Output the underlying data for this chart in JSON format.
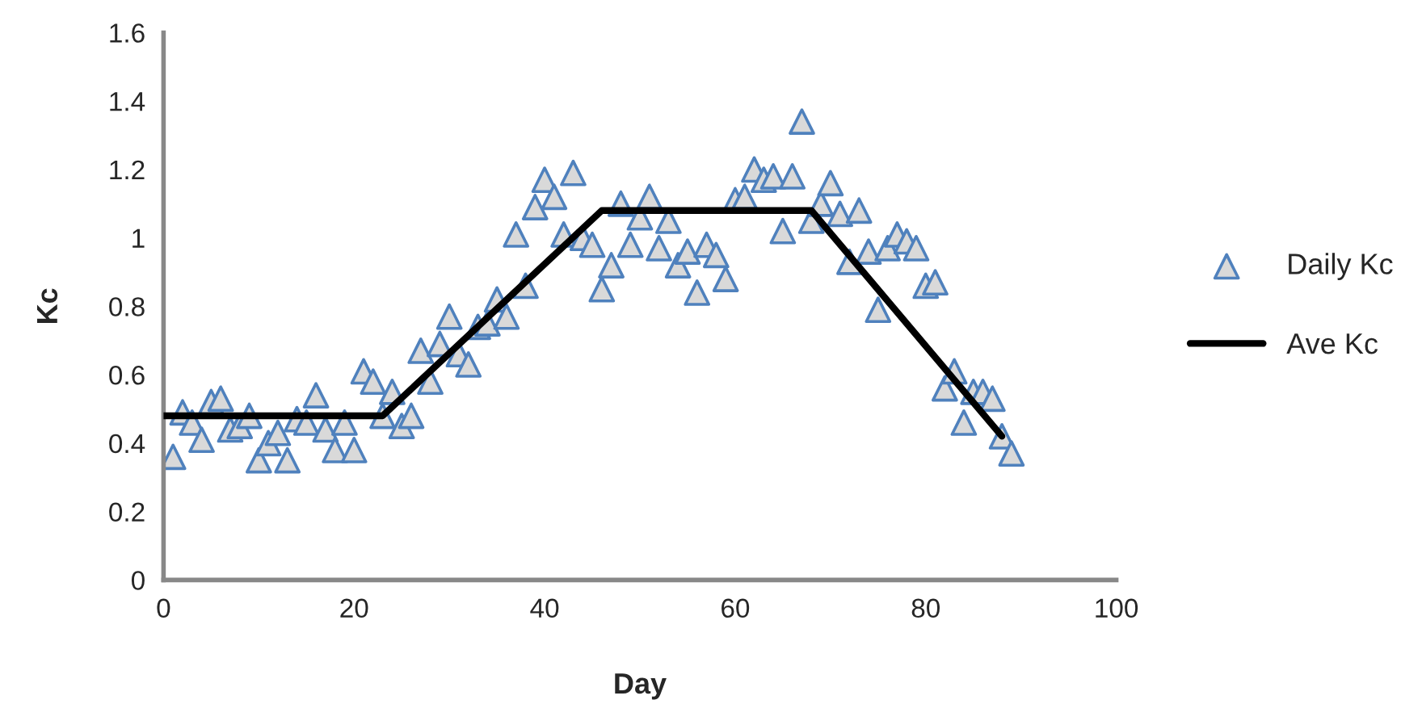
{
  "chart_data": {
    "type": "scatter",
    "xlabel": "Day",
    "ylabel": "Kc",
    "xlim": [
      0,
      100
    ],
    "xticks": [
      0,
      20,
      40,
      60,
      80,
      100
    ],
    "ylim": [
      0,
      1.6
    ],
    "yticks": [
      0,
      0.2,
      0.4,
      0.6,
      0.8,
      1,
      1.2,
      1.4,
      1.6
    ],
    "grid": false,
    "legend": "right",
    "series": [
      {
        "name": "Daily Kc",
        "marker": "triangle",
        "color": "#4f81bd",
        "x": [
          1,
          2,
          3,
          4,
          5,
          6,
          7,
          8,
          9,
          10,
          11,
          12,
          13,
          14,
          15,
          16,
          17,
          18,
          19,
          20,
          21,
          22,
          23,
          24,
          25,
          26,
          27,
          28,
          29,
          30,
          31,
          32,
          33,
          34,
          35,
          36,
          37,
          38,
          39,
          40,
          41,
          42,
          43,
          44,
          45,
          46,
          47,
          48,
          49,
          50,
          51,
          52,
          53,
          54,
          55,
          56,
          57,
          58,
          59,
          60,
          61,
          62,
          63,
          64,
          65,
          66,
          67,
          68,
          69,
          70,
          71,
          72,
          73,
          74,
          75,
          76,
          77,
          78,
          79,
          80,
          81,
          82,
          83,
          84,
          85,
          86,
          87,
          88,
          89
        ],
        "values": [
          0.36,
          0.49,
          0.46,
          0.41,
          0.52,
          0.53,
          0.44,
          0.45,
          0.48,
          0.35,
          0.4,
          0.43,
          0.35,
          0.47,
          0.46,
          0.54,
          0.44,
          0.38,
          0.46,
          0.38,
          0.61,
          0.58,
          0.48,
          0.55,
          0.45,
          0.48,
          0.67,
          0.58,
          0.69,
          0.77,
          0.66,
          0.63,
          0.74,
          0.75,
          0.82,
          0.77,
          1.01,
          0.86,
          1.09,
          1.17,
          1.12,
          1.01,
          1.19,
          1.0,
          0.98,
          0.85,
          0.92,
          1.1,
          0.98,
          1.06,
          1.12,
          0.97,
          1.05,
          0.92,
          0.96,
          0.84,
          0.98,
          0.95,
          0.88,
          1.11,
          1.12,
          1.2,
          1.17,
          1.18,
          1.02,
          1.18,
          1.34,
          1.05,
          1.1,
          1.16,
          1.07,
          0.93,
          1.08,
          0.96,
          0.79,
          0.97,
          1.01,
          0.99,
          0.97,
          0.86,
          0.87,
          0.56,
          0.61,
          0.46,
          0.55,
          0.55,
          0.53,
          0.42,
          0.37
        ]
      },
      {
        "name": "Ave Kc",
        "type": "line",
        "marker": "none",
        "line_style": "solid",
        "color": "#000000",
        "x": [
          0,
          23,
          46,
          68,
          88
        ],
        "values": [
          0.48,
          0.48,
          1.08,
          1.08,
          0.42
        ]
      }
    ]
  }
}
